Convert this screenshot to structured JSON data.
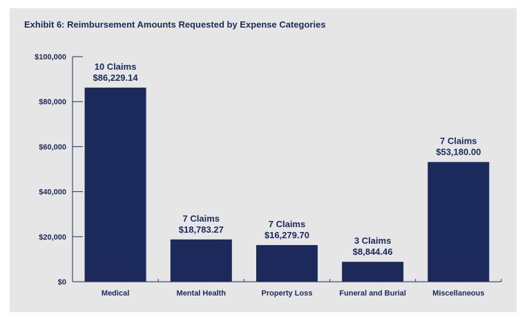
{
  "chart_data": {
    "type": "bar",
    "title": "Exhibit 6: Reimbursement Amounts Requested by Expense Categories",
    "categories": [
      "Medical",
      "Mental Health",
      "Property Loss",
      "Funeral and Burial",
      "Miscellaneous"
    ],
    "values": [
      86229.14,
      18783.27,
      16279.7,
      8844.46,
      53180.0
    ],
    "data_labels": [
      {
        "count": "10 Claims",
        "amount": "$86,229.14"
      },
      {
        "count": "7 Claims",
        "amount": "$18,783.27"
      },
      {
        "count": "7 Claims",
        "amount": "$16,279.70"
      },
      {
        "count": "3 Claims",
        "amount": "$8,844.46"
      },
      {
        "count": "7 Claims",
        "amount": "$53,180.00"
      }
    ],
    "ylim": [
      0,
      100000
    ],
    "yticks": [
      0,
      20000,
      40000,
      60000,
      80000,
      100000
    ],
    "ytick_labels": [
      "$0",
      "$20,000",
      "$40,000",
      "$60,000",
      "$80,000",
      "$100,000"
    ],
    "xlabel": "",
    "ylabel": "",
    "grid": false,
    "bar_color": "#1b2a5a",
    "background_color": "#e6e6e6"
  }
}
